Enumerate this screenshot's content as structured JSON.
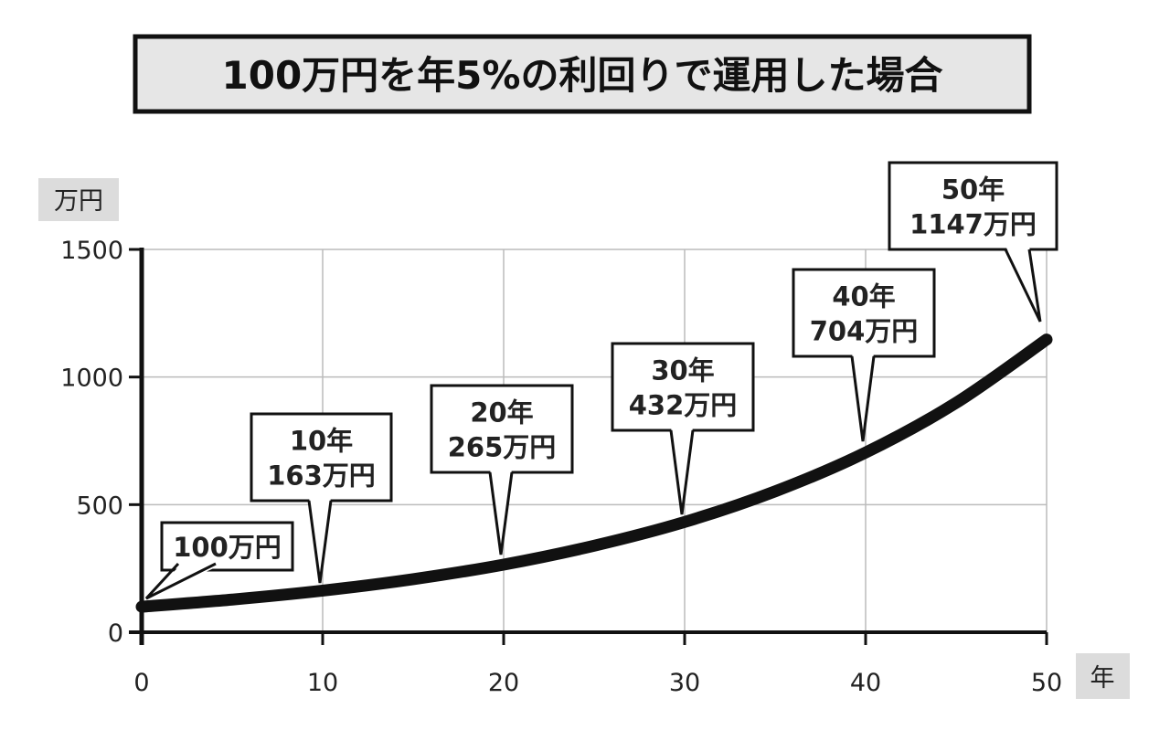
{
  "chart_data": {
    "type": "line",
    "title": "100万円を年5%の利回りで運用した場合",
    "xlabel": "年",
    "ylabel": "万円",
    "xlim": [
      0,
      50
    ],
    "ylim": [
      0,
      1500
    ],
    "x_ticks": [
      "0",
      "10",
      "20",
      "30",
      "40",
      "50"
    ],
    "y_ticks": [
      "0",
      "500",
      "1000",
      "1500"
    ],
    "grid": true,
    "x": [
      0,
      5,
      10,
      15,
      20,
      25,
      30,
      35,
      40,
      45,
      50
    ],
    "values": [
      100,
      128,
      163,
      208,
      265,
      339,
      432,
      552,
      704,
      899,
      1147
    ],
    "annotations": [
      {
        "x": 0,
        "y": 100,
        "lines": [
          "100万円"
        ]
      },
      {
        "x": 10,
        "y": 163,
        "lines": [
          "10年",
          "163万円"
        ]
      },
      {
        "x": 20,
        "y": 265,
        "lines": [
          "20年",
          "265万円"
        ]
      },
      {
        "x": 30,
        "y": 432,
        "lines": [
          "30年",
          "432万円"
        ]
      },
      {
        "x": 40,
        "y": 704,
        "lines": [
          "40年",
          "704万円"
        ]
      },
      {
        "x": 50,
        "y": 1147,
        "lines": [
          "50年",
          "1147万円"
        ]
      }
    ],
    "colors": {
      "line": "#111111",
      "grid": "#bbbbbb",
      "title_bg": "#e6e6e6",
      "unit_bg": "#dcdcdc"
    }
  }
}
